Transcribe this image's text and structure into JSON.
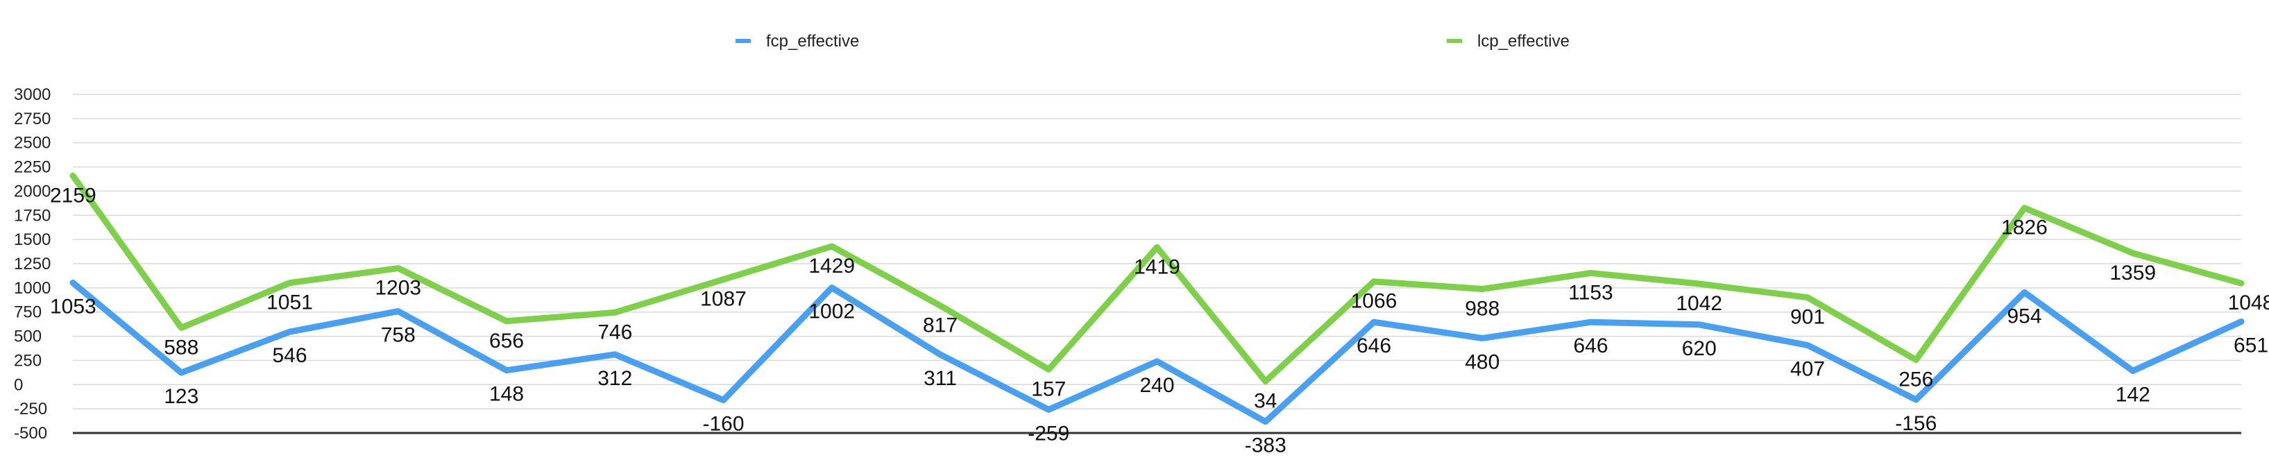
{
  "chart_data": {
    "type": "line",
    "title": "",
    "xlabel": "",
    "ylabel": "",
    "ylim": [
      -500,
      3000
    ],
    "yticks": [
      -500,
      -250,
      0,
      250,
      500,
      750,
      1000,
      1250,
      1500,
      1750,
      2000,
      2250,
      2500,
      2750,
      3000
    ],
    "grid": true,
    "legend_position": "top",
    "series": [
      {
        "name": "fcp_effective",
        "color": "#4aa0f0",
        "values": [
          1053,
          123,
          546,
          758,
          148,
          312,
          -160,
          1002,
          311,
          -259,
          240,
          -383,
          646,
          480,
          646,
          620,
          407,
          -156,
          954,
          142,
          651
        ]
      },
      {
        "name": "lcp_effective",
        "color": "#7ed04b",
        "values": [
          2159,
          588,
          1051,
          1203,
          656,
          746,
          1087,
          1429,
          817,
          157,
          1419,
          34,
          1066,
          988,
          1153,
          1042,
          901,
          256,
          1826,
          1359,
          1048
        ]
      }
    ]
  }
}
